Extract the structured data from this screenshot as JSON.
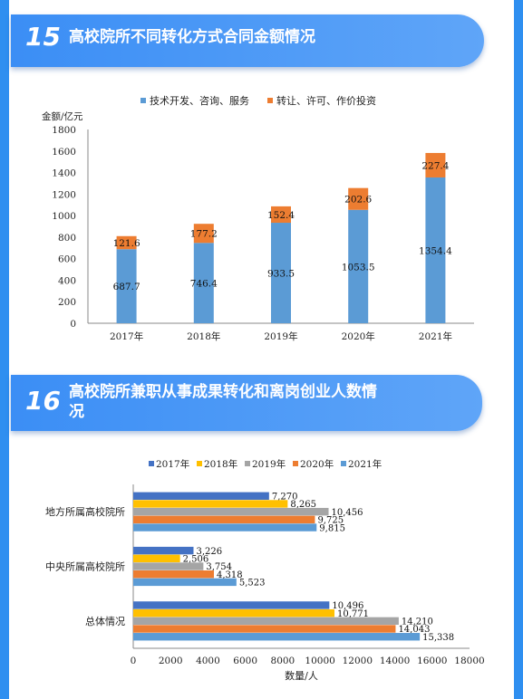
{
  "section15": {
    "number": "15",
    "title": "高校院所不同转化方式合同金额情况"
  },
  "section16": {
    "number": "16",
    "title_line1": "高校院所兼职从事成果转化和离岗创业人数情",
    "title_line2": "况"
  },
  "chart_data": [
    {
      "type": "bar",
      "stacked": true,
      "orientation": "vertical",
      "ylabel": "金额/亿元",
      "categories": [
        "2017年",
        "2018年",
        "2019年",
        "2020年",
        "2021年"
      ],
      "ylim": [
        0,
        1800
      ],
      "yticks": [
        0,
        200,
        400,
        600,
        800,
        1000,
        1200,
        1400,
        1600,
        1800
      ],
      "legend_position": "top",
      "series": [
        {
          "name": "技术开发、咨询、服务",
          "color": "#5b9bd5",
          "values": [
            687.7,
            746.4,
            933.5,
            1053.5,
            1354.4
          ],
          "labels": [
            "687.7",
            "746.4",
            "933.5",
            "1053.5",
            "1354.4"
          ]
        },
        {
          "name": "转让、许可、作价投资",
          "color": "#ed7d31",
          "values": [
            121.6,
            177.2,
            152.4,
            202.6,
            227.4
          ],
          "labels": [
            "121.6",
            "177.2",
            "152.4",
            "202.6",
            "227.4"
          ]
        }
      ]
    },
    {
      "type": "bar",
      "orientation": "horizontal",
      "xlabel": "数量/人",
      "categories": [
        "地方所属高校院所",
        "中央所属高校院所",
        "总体情况"
      ],
      "xlim": [
        0,
        18000
      ],
      "xticks": [
        0,
        2000,
        4000,
        6000,
        8000,
        10000,
        12000,
        14000,
        16000,
        18000
      ],
      "legend_position": "top",
      "series": [
        {
          "name": "2017年",
          "color": "#4472c4",
          "values": [
            7270,
            3226,
            10496
          ],
          "labels": [
            "7,270",
            "3,226",
            "10,496"
          ]
        },
        {
          "name": "2018年",
          "color": "#ffc000",
          "values": [
            8265,
            2506,
            10771
          ],
          "labels": [
            "8,265",
            "2,506",
            "10,771"
          ]
        },
        {
          "name": "2019年",
          "color": "#a5a5a5",
          "values": [
            10456,
            3754,
            14210
          ],
          "labels": [
            "10,456",
            "3,754",
            "14,210"
          ]
        },
        {
          "name": "2020年",
          "color": "#ed7d31",
          "values": [
            9725,
            4318,
            14043
          ],
          "labels": [
            "9,725",
            "4,318",
            "14,043"
          ]
        },
        {
          "name": "2021年",
          "color": "#5b9bd5",
          "values": [
            9815,
            5523,
            15338
          ],
          "labels": [
            "9,815",
            "5,523",
            "15,338"
          ]
        }
      ]
    }
  ]
}
